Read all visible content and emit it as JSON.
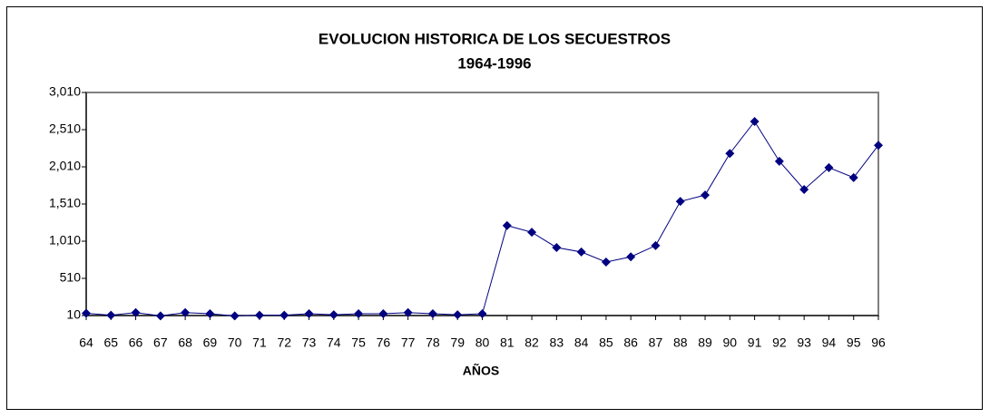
{
  "chart_data": {
    "type": "line",
    "title": "EVOLUCION HISTORICA DE LOS SECUESTROS",
    "subtitle": "1964-1996",
    "x_label": "AÑOS",
    "categories": [
      "64",
      "65",
      "66",
      "67",
      "68",
      "69",
      "70",
      "71",
      "72",
      "73",
      "74",
      "75",
      "76",
      "77",
      "78",
      "79",
      "80",
      "81",
      "82",
      "83",
      "84",
      "85",
      "86",
      "87",
      "88",
      "89",
      "90",
      "91",
      "92",
      "93",
      "94",
      "95",
      "96"
    ],
    "values": [
      40,
      15,
      50,
      5,
      50,
      35,
      5,
      15,
      15,
      35,
      20,
      35,
      35,
      50,
      35,
      20,
      35,
      1220,
      1130,
      925,
      865,
      730,
      800,
      950,
      1545,
      1630,
      2190,
      2620,
      2085,
      1705,
      2000,
      1865,
      2300
    ],
    "color": "#000080",
    "ylim": [
      10,
      3010
    ],
    "yticks": [
      10,
      510,
      {
        "value": 1010,
        "label": "1,010"
      },
      {
        "value": 1510,
        "label": "1,510"
      },
      {
        "value": 2010,
        "label": "2,010"
      },
      {
        "value": 2510,
        "label": "2,510"
      },
      {
        "value": 3010,
        "label": "3,010"
      }
    ],
    "grid": false
  }
}
